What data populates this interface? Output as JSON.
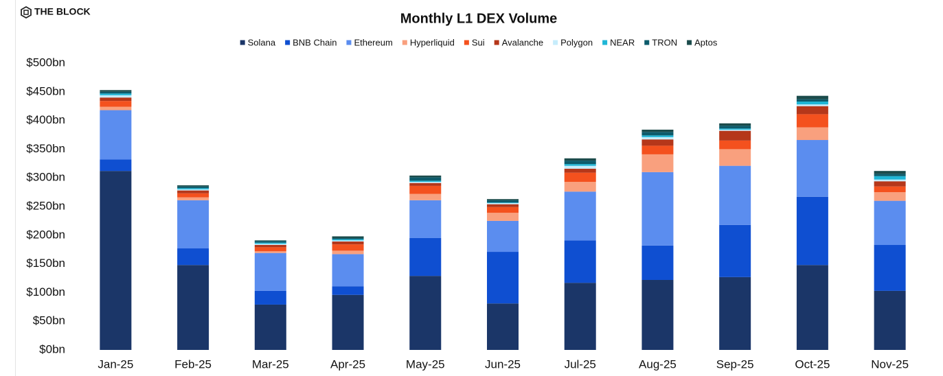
{
  "brand": "THE BLOCK",
  "chart_data": {
    "type": "stacked_bar",
    "title": "Monthly L1 DEX Volume",
    "categories": [
      "Jan-25",
      "Feb-25",
      "Mar-25",
      "Apr-25",
      "May-25",
      "Jun-25",
      "Jul-25",
      "Aug-25",
      "Sep-25",
      "Oct-25",
      "Nov-25"
    ],
    "series": [
      {
        "name": "Solana",
        "color": "#1b3668",
        "values": [
          312,
          148,
          79,
          96,
          129,
          81,
          117,
          122,
          127,
          148,
          103
        ]
      },
      {
        "name": "BNB Chain",
        "color": "#0f4fd1",
        "values": [
          20,
          29,
          24,
          15,
          66,
          90,
          74,
          60,
          91,
          119,
          80
        ]
      },
      {
        "name": "Ethereum",
        "color": "#5b8def",
        "values": [
          86,
          84,
          66,
          56,
          66,
          54,
          85,
          128,
          103,
          99,
          77
        ]
      },
      {
        "name": "Hyperliquid",
        "color": "#f9a07e",
        "values": [
          6,
          5,
          3,
          6,
          11,
          14,
          17,
          31,
          29,
          22,
          15
        ]
      },
      {
        "name": "Sui",
        "color": "#f4511e",
        "values": [
          10,
          7,
          7,
          11,
          14,
          10,
          16,
          15,
          15,
          23,
          10
        ]
      },
      {
        "name": "Avalanche",
        "color": "#b5371a",
        "values": [
          6,
          5,
          4,
          5,
          5,
          5,
          7,
          11,
          17,
          14,
          9
        ]
      },
      {
        "name": "Polygon",
        "color": "#c6ecfb",
        "values": [
          4,
          2,
          2,
          2,
          2,
          2,
          5,
          4,
          2,
          3,
          3
        ]
      },
      {
        "name": "NEAR",
        "color": "#1fb6d6",
        "values": [
          3,
          2,
          2,
          2,
          2,
          1,
          3,
          3,
          2,
          5,
          6
        ]
      },
      {
        "name": "TRON",
        "color": "#0d5b6b",
        "values": [
          3,
          3,
          3,
          2,
          6,
          4,
          6,
          6,
          5,
          4,
          4
        ]
      },
      {
        "name": "Aptos",
        "color": "#1b4b4b",
        "values": [
          3,
          2,
          1,
          3,
          3,
          2,
          4,
          4,
          4,
          6,
          5
        ]
      }
    ],
    "ylim": [
      0,
      500
    ],
    "yticks": [
      {
        "value": 0,
        "label": "$0bn"
      },
      {
        "value": 50,
        "label": "$50bn"
      },
      {
        "value": 100,
        "label": "$100bn"
      },
      {
        "value": 150,
        "label": "$150bn"
      },
      {
        "value": 200,
        "label": "$200bn"
      },
      {
        "value": 250,
        "label": "$250bn"
      },
      {
        "value": 300,
        "label": "$300bn"
      },
      {
        "value": 350,
        "label": "$350bn"
      },
      {
        "value": 400,
        "label": "$400bn"
      },
      {
        "value": 450,
        "label": "$450bn"
      },
      {
        "value": 500,
        "label": "$500bn"
      }
    ],
    "grid": false,
    "legend": "top"
  }
}
